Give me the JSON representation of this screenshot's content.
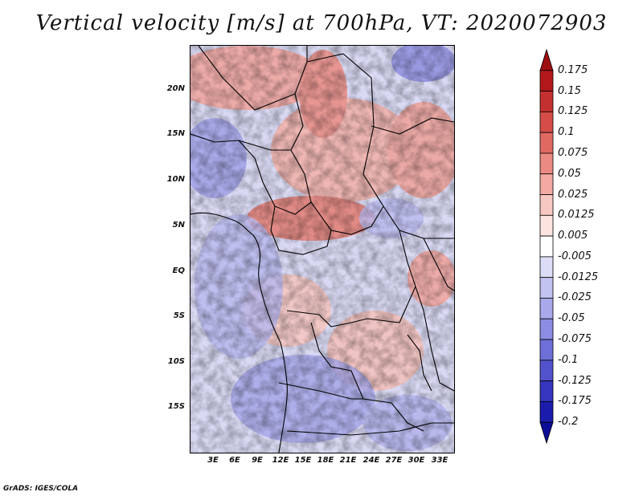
{
  "title": "Vertical velocity [m/s] at 700hPa, VT: 2020072903",
  "footer": "GrADS: IGES/COLA",
  "map": {
    "lat_labels": [
      "20N",
      "15N",
      "10N",
      "5N",
      "EQ",
      "5S",
      "10S",
      "15S"
    ],
    "lon_labels": [
      "3E",
      "6E",
      "9E",
      "12E",
      "15E",
      "18E",
      "21E",
      "24E",
      "27E",
      "30E",
      "33E"
    ]
  },
  "colorbar": {
    "levels": [
      "0.175",
      "0.15",
      "0.125",
      "0.1",
      "0.075",
      "0.05",
      "0.025",
      "0.0125",
      "0.005",
      "-0.005",
      "-0.0125",
      "-0.025",
      "-0.05",
      "-0.075",
      "-0.1",
      "-0.125",
      "-0.175",
      "-0.2"
    ],
    "colors": [
      "#9e0f12",
      "#b2181b",
      "#c4302f",
      "#d44d48",
      "#e06a63",
      "#ea8a82",
      "#f2aaa2",
      "#f7c8c1",
      "#fbe3df",
      "#ffffff",
      "#dcdcf6",
      "#c3c3f0",
      "#a8a8ea",
      "#8c8ce2",
      "#6f6fd8",
      "#5252cc",
      "#3535be",
      "#1c1cac",
      "#0c0c96"
    ]
  }
}
